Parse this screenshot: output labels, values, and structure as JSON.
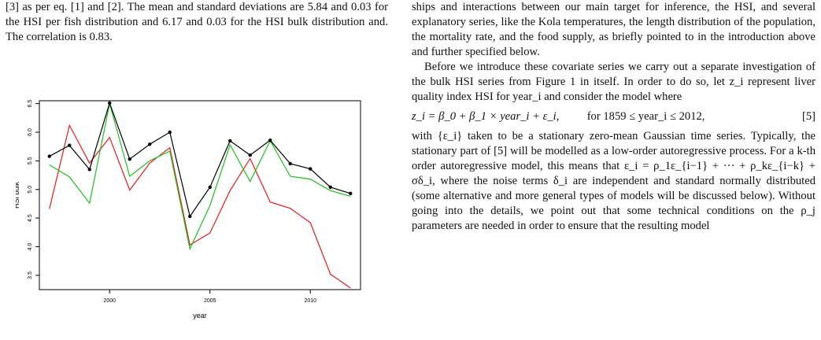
{
  "left_column": {
    "paragraph": "[3] as per eq. [1] and [2]. The mean and standard deviations are 5.84 and 0.03 for the HSI per fish distribution and 6.17 and 0.03 for the HSI bulk distribution and. The correlation is 0.83."
  },
  "right_column": {
    "paragraph1": "ships and interactions between our main target for inference, the HSI, and several explanatory series, like the Kola temperatures, the length distribution of the population, the mortality rate, and the food supply, as briefly pointed to in the introduction above and further specified below.",
    "paragraph2": "Before we introduce these covariate series we carry out a separate investigation of the bulk HSI series from Figure 1 in itself. In order to do so, let z_i represent liver quality index HSI for year_i and consider the model where",
    "equation": {
      "lhs": "z_i = β_0 + β_1 × year_i + ε_i,",
      "condition": "for 1859 ≤ year_i ≤ 2012,",
      "number": "[5]"
    },
    "paragraph3": "with {ε_i} taken to be a stationary zero-mean Gaussian time series. Typically, the stationary part of [5] will be modelled as a low-order autoregressive process. For a k-th order autoregressive model, this means that ε_i = ρ_1ε_{i−1} + ··· + ρ_kε_{i−k} + σδ_i, where the noise terms δ_i are independent and standard normally distributed (some alternative and more general types of models will be discussed below). Without going into the details, we point out that some technical conditions on the ρ_j parameters are needed in order to ensure that the resulting model"
  },
  "chart_data": {
    "type": "line",
    "xlabel": "year",
    "ylabel": "HSI bulk",
    "xlim": [
      1996.5,
      2012.5
    ],
    "ylim": [
      3.25,
      6.55
    ],
    "x_ticks": [
      2000,
      2005,
      2010
    ],
    "y_ticks": [
      3.5,
      4.0,
      4.5,
      5.0,
      5.5,
      6.0,
      6.5
    ],
    "x": [
      1997,
      1998,
      1999,
      2000,
      2001,
      2002,
      2003,
      2004,
      2005,
      2006,
      2007,
      2008,
      2009,
      2010,
      2011,
      2012
    ],
    "series": [
      {
        "color": "#000000",
        "markers": true,
        "values": [
          5.58,
          5.77,
          5.35,
          6.51,
          5.53,
          5.79,
          6.0,
          4.53,
          5.04,
          5.85,
          5.6,
          5.86,
          5.45,
          5.36,
          5.04,
          4.93
        ]
      },
      {
        "color": "#e31a1c",
        "markers": false,
        "values": [
          4.66,
          6.12,
          5.46,
          5.91,
          4.99,
          5.46,
          5.73,
          4.03,
          4.24,
          4.98,
          5.54,
          4.78,
          4.67,
          4.42,
          3.52,
          3.28
        ]
      },
      {
        "color": "#1fbf1f",
        "markers": false,
        "values": [
          5.43,
          5.22,
          4.76,
          6.5,
          5.23,
          5.5,
          5.67,
          3.96,
          4.72,
          5.78,
          5.14,
          5.85,
          5.23,
          5.18,
          4.98,
          4.88
        ]
      }
    ]
  }
}
